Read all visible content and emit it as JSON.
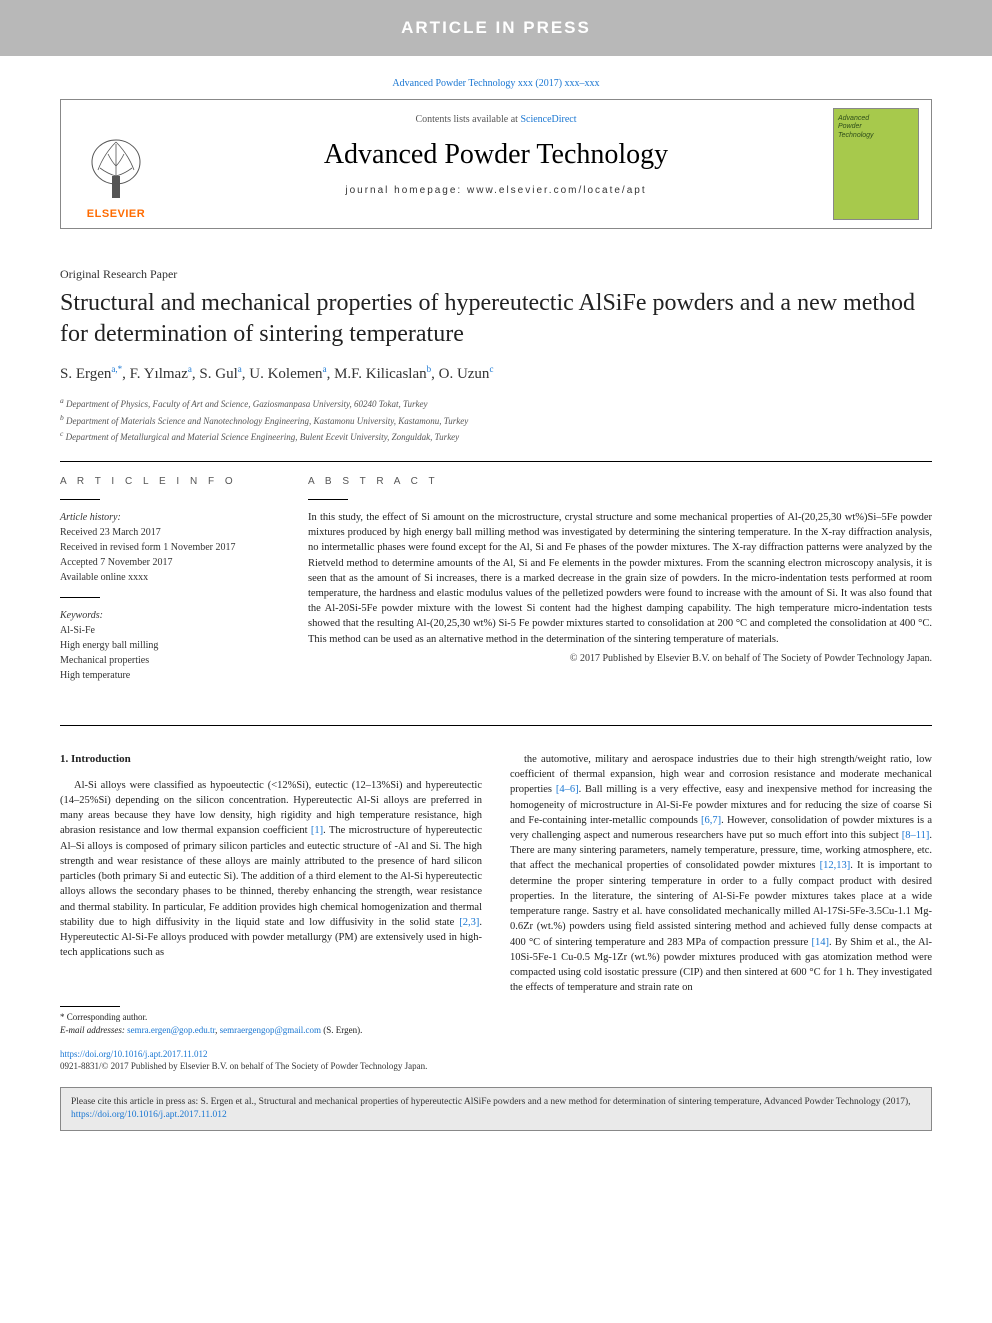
{
  "banner": {
    "text": "ARTICLE IN PRESS"
  },
  "citation_top": "Advanced Powder Technology xxx (2017) xxx–xxx",
  "masthead": {
    "contents_prefix": "Contents lists available at ",
    "contents_link": "ScienceDirect",
    "journal_name": "Advanced Powder Technology",
    "homepage_prefix": "journal homepage: ",
    "homepage_url": "www.elsevier.com/locate/apt",
    "elsevier_label": "ELSEVIER",
    "cover_text": "Advanced\nPowder\nTechnology"
  },
  "paper": {
    "type": "Original Research Paper",
    "title": "Structural and mechanical properties of hypereutectic AlSiFe powders and a new method for determination of sintering temperature",
    "authors_html": "S. Ergen<sup>a,*</sup>, F. Yılmaz<sup>a</sup>, S. Gul<sup>a</sup>, U. Kolemen<sup>a</sup>, M.F. Kilicaslan<sup>b</sup>, O. Uzun<sup>c</sup>",
    "affiliations": [
      "a Department of Physics, Faculty of Art and Science, Gaziosmanpasa University, 60240 Tokat, Turkey",
      "b Department of Materials Science and Nanotechnology Engineering, Kastamonu University, Kastamonu, Turkey",
      "c Department of Metallurgical and Material Science Engineering, Bulent Ecevit University, Zonguldak, Turkey"
    ]
  },
  "info": {
    "heading": "A R T I C L E   I N F O",
    "history_label": "Article history:",
    "history": [
      "Received 23 March 2017",
      "Received in revised form 1 November 2017",
      "Accepted 7 November 2017",
      "Available online xxxx"
    ],
    "keywords_label": "Keywords:",
    "keywords": [
      "Al-Si-Fe",
      "High energy ball milling",
      "Mechanical properties",
      "High temperature"
    ]
  },
  "abstract": {
    "heading": "A B S T R A C T",
    "text": "In this study, the effect of Si amount on the microstructure, crystal structure and some mechanical properties of Al-(20,25,30 wt%)Si–5Fe powder mixtures produced by high energy ball milling method was investigated by determining the sintering temperature. In the X-ray diffraction analysis, no intermetallic phases were found except for the Al, Si and Fe phases of the powder mixtures. The X-ray diffraction patterns were analyzed by the Rietveld method to determine amounts of the Al, Si and Fe elements in the powder mixtures. From the scanning electron microscopy analysis, it is seen that as the amount of Si increases, there is a marked decrease in the grain size of powders. In the micro-indentation tests performed at room temperature, the hardness and elastic modulus values of the pelletized powders were found to increase with the amount of Si. It was also found that the Al-20Si-5Fe powder mixture with the lowest Si content had the highest damping capability. The high temperature micro-indentation tests showed that the resulting Al-(20,25,30 wt%) Si-5 Fe powder mixtures started to consolidation at 200 °C and completed the consolidation at 400 °C. This method can be used as an alternative method in the determination of the sintering temperature of materials.",
    "copyright": "© 2017 Published by Elsevier B.V. on behalf of The Society of Powder Technology Japan."
  },
  "body": {
    "section_heading": "1. Introduction",
    "col1_html": "Al-Si alloys were classified as hypoeutectic (<12%Si), eutectic (12–13%Si) and hypereutectic (14–25%Si) depending on the silicon concentration. Hypereutectic Al-Si alloys are preferred in many areas because they have low density, high rigidity and high temperature resistance, high abrasion resistance and low thermal expansion coefficient <span class=\"ref-link\">[1]</span>. The microstructure of hypereutectic Al–Si alloys is composed of primary silicon particles and eutectic structure of -Al and Si. The high strength and wear resistance of these alloys are mainly attributed to the presence of hard silicon particles (both primary Si and eutectic Si). The addition of a third element to the Al-Si hypereutectic alloys allows the secondary phases to be thinned, thereby enhancing the strength, wear resistance and thermal stability. In particular, Fe addition provides high chemical homogenization and thermal stability due to high diffusivity in the liquid state and low diffusivity in the solid state <span class=\"ref-link\">[2,3]</span>. Hypereutectic Al-Si-Fe alloys produced with powder metallurgy (PM) are extensively used in high-tech applications such as",
    "col2_html": "the automotive, military and aerospace industries due to their high strength/weight ratio, low coefficient of thermal expansion, high wear and corrosion resistance and moderate mechanical properties <span class=\"ref-link\">[4–6]</span>. Ball milling is a very effective, easy and inexpensive method for increasing the homogeneity of microstructure in Al-Si-Fe powder mixtures and for reducing the size of coarse Si and Fe-containing inter-metallic compounds <span class=\"ref-link\">[6,7]</span>. However, consolidation of powder mixtures is a very challenging aspect and numerous researchers have put so much effort into this subject <span class=\"ref-link\">[8–11]</span>. There are many sintering parameters, namely temperature, pressure, time, working atmosphere, etc. that affect the mechanical properties of consolidated powder mixtures <span class=\"ref-link\">[12,13]</span>. It is important to determine the proper sintering temperature in order to a fully compact product with desired properties. In the literature, the sintering of Al-Si-Fe powder mixtures takes place at a wide temperature range. Sastry et al. have consolidated mechanically milled Al-17Si-5Fe-3.5Cu-1.1 Mg-0.6Zr (wt.%) powders using field assisted sintering method and achieved fully dense compacts at 400 °C of sintering temperature and 283 MPa of compaction pressure <span class=\"ref-link\">[14]</span>. By Shim et al., the Al-10Si-5Fe-1 Cu-0.5 Mg-1Zr (wt.%) powder mixtures produced with gas atomization method were compacted using cold isostatic pressure (CIP) and then sintered at 600 °C for 1 h. They investigated the effects of temperature and strain rate on"
  },
  "footnote": {
    "corresponding": "* Corresponding author.",
    "email_label": "E-mail addresses: ",
    "email1": "semra.ergen@gop.edu.tr",
    "email2": "semraergengop@gmail.com",
    "email_suffix": " (S. Ergen)."
  },
  "doi": {
    "url": "https://doi.org/10.1016/j.apt.2017.11.012",
    "issn_line": "0921-8831/© 2017 Published by Elsevier B.V. on behalf of The Society of Powder Technology Japan."
  },
  "cite_box": {
    "text_prefix": "Please cite this article in press as: S. Ergen et al., Structural and mechanical properties of hypereutectic AlSiFe powders and a new method for determination of sintering temperature, Advanced Powder Technology (2017), ",
    "link": "https://doi.org/10.1016/j.apt.2017.11.012"
  },
  "colors": {
    "banner_bg": "#b8b8b8",
    "link": "#1976d2",
    "elsevier_orange": "#ff6b00",
    "cover_bg": "#a7c94c",
    "cite_bg": "#eaeaea"
  }
}
